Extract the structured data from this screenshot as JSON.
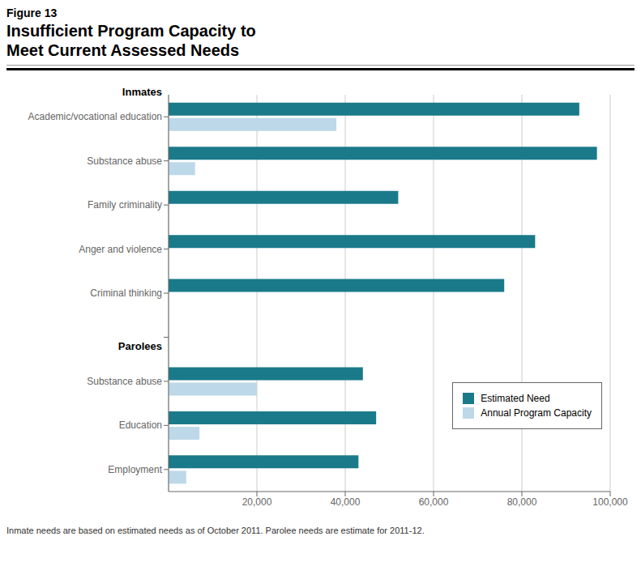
{
  "chart_data": {
    "type": "bar",
    "orientation": "horizontal",
    "subtitle": "Figure 13",
    "title": "Insufficient Program Capacity to\nMeet Current Assessed Needs",
    "annotations": [
      "Inmates",
      "Parolees",
      "Inmate needs are based on estimated needs as of October 2011. Parolee needs are estimate for 2011-12."
    ],
    "categories": [
      "Academic/vocational education",
      "Substance abuse",
      "Family criminality",
      "Anger and violence",
      "Criminal thinking",
      null,
      "Substance abuse",
      "Education",
      "Employment"
    ],
    "series": [
      {
        "name": "Estimated Need",
        "color": "#1A7A8A",
        "values": [
          93000,
          97000,
          52000,
          83000,
          76000,
          null,
          44000,
          47000,
          43000
        ]
      },
      {
        "name": "Annual Program Capacity",
        "color": "#BDD8E8",
        "values": [
          38000,
          6000,
          0,
          0,
          0,
          null,
          20000,
          7000,
          4000
        ]
      }
    ],
    "xlim": [
      0,
      100000
    ],
    "xticks": [
      {
        "value": 20000,
        "label": "20,000"
      },
      {
        "value": 40000,
        "label": "40,000"
      },
      {
        "value": 60000,
        "label": "60,000"
      },
      {
        "value": 80000,
        "label": "80,000"
      },
      {
        "value": 100000,
        "label": "100,000"
      }
    ],
    "grid": true,
    "legend": "lower right"
  }
}
